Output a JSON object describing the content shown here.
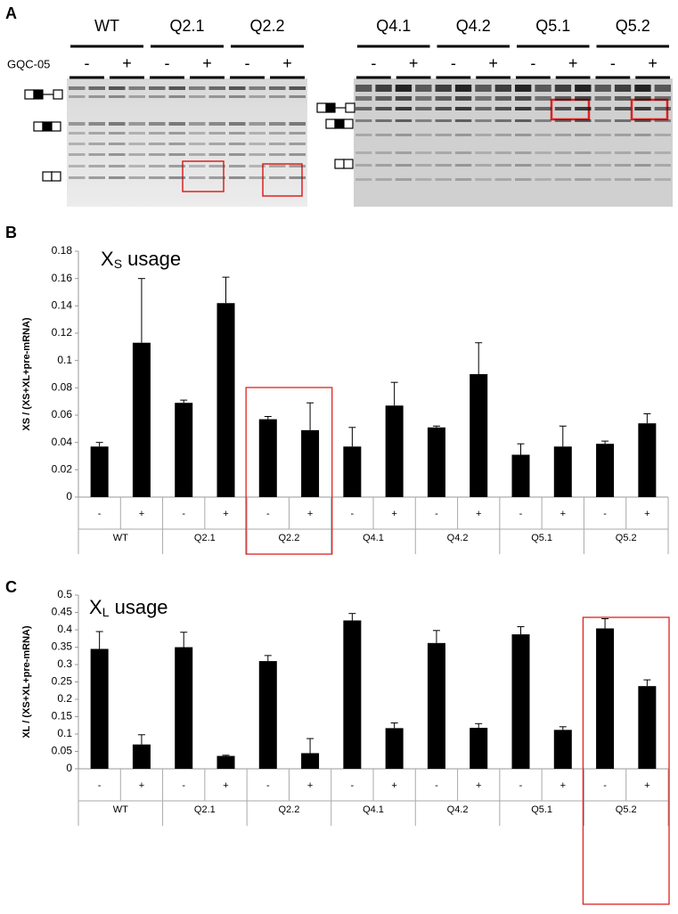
{
  "panel_a": {
    "label": "A",
    "treatment_label": "GQC-05",
    "left": {
      "groups": [
        "WT",
        "Q2.1",
        "Q2.2"
      ],
      "signs": [
        "-",
        "+",
        "-",
        "+",
        "-",
        "+"
      ]
    },
    "right": {
      "groups": [
        "Q4.1",
        "Q4.2",
        "Q5.1",
        "Q5.2"
      ],
      "signs": [
        "-",
        "+",
        "-",
        "+",
        "-",
        "+",
        "-",
        "+"
      ]
    }
  },
  "chart_data": [
    {
      "type": "bar",
      "panel": "B",
      "title": [
        "X",
        "S",
        " usage"
      ],
      "ylabel": "XS / (XS+XL+pre-mRNA)",
      "categories": [
        "-",
        "+",
        "-",
        "+",
        "-",
        "+",
        "-",
        "+",
        "-",
        "+",
        "-",
        "+",
        "-",
        "+"
      ],
      "groups": [
        "WT",
        "Q2.1",
        "Q2.2",
        "Q4.1",
        "Q4.2",
        "Q5.1",
        "Q5.2"
      ],
      "values": [
        0.037,
        0.113,
        0.069,
        0.142,
        0.057,
        0.049,
        0.037,
        0.067,
        0.051,
        0.09,
        0.031,
        0.037,
        0.039,
        0.054
      ],
      "errors": [
        0.003,
        0.047,
        0.002,
        0.019,
        0.002,
        0.02,
        0.014,
        0.017,
        0.001,
        0.023,
        0.008,
        0.015,
        0.002,
        0.007
      ],
      "color": "#000000",
      "ylim": [
        0,
        0.18
      ],
      "yticks": [
        0,
        0.02,
        0.04,
        0.06,
        0.08,
        0.1,
        0.12,
        0.14,
        0.16,
        0.18
      ],
      "highlight": "Q2.2"
    },
    {
      "type": "bar",
      "panel": "C",
      "title": [
        "X",
        "L",
        " usage"
      ],
      "ylabel": "XL / (XS+XL+pre-mRNA)",
      "categories": [
        "-",
        "+",
        "-",
        "+",
        "-",
        "+",
        "-",
        "+",
        "-",
        "+",
        "-",
        "+",
        "-",
        "+"
      ],
      "groups": [
        "WT",
        "Q2.1",
        "Q2.2",
        "Q4.1",
        "Q4.2",
        "Q5.1",
        "Q5.2"
      ],
      "values": [
        0.345,
        0.07,
        0.35,
        0.037,
        0.31,
        0.045,
        0.427,
        0.117,
        0.362,
        0.118,
        0.387,
        0.112,
        0.404,
        0.238
      ],
      "errors": [
        0.05,
        0.028,
        0.043,
        0.002,
        0.016,
        0.042,
        0.02,
        0.015,
        0.036,
        0.012,
        0.022,
        0.009,
        0.028,
        0.018
      ],
      "color": "#000000",
      "ylim": [
        0,
        0.5
      ],
      "yticks": [
        0,
        0.05,
        0.1,
        0.15,
        0.2,
        0.25,
        0.3,
        0.35,
        0.4,
        0.45,
        0.5
      ],
      "highlight": "Q5.2"
    }
  ]
}
